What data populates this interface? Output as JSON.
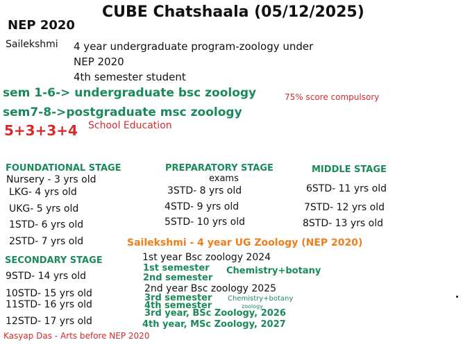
{
  "colors": {
    "text": "#111111",
    "green": "#1b8a5a",
    "red": "#d62b2b",
    "orange": "#ef7d1a",
    "background": "#ffffff"
  },
  "header": {
    "title": "CUBE Chatshaala (05/12/2025)",
    "nep": "NEP 2020"
  },
  "intro": {
    "name": "Sailekshmi",
    "line1": "4 year undergraduate program-zoology under",
    "line2": "NEP 2020",
    "line3": "4th semester student"
  },
  "sems": {
    "ug": "sem 1-6-> undergraduate bsc zoology",
    "score": "75% score compulsory",
    "pg": "sem7-8->postgraduate msc zoology"
  },
  "school": {
    "formula": "5+3+3+4",
    "label": "School Education"
  },
  "stages": {
    "foundational": {
      "heading": "FOUNDATIONAL STAGE",
      "items": [
        "Nursery - 3 yrs old",
        "LKG- 4 yrs old",
        "UKG- 5 yrs old",
        "1STD- 6 yrs old",
        "2STD- 7 yrs old"
      ]
    },
    "preparatory": {
      "heading": "PREPARATORY STAGE",
      "note": "exams",
      "items": [
        "3STD- 8 yrs old",
        "4STD- 9 yrs old",
        "5STD- 10 yrs old"
      ]
    },
    "middle": {
      "heading": "MIDDLE STAGE",
      "items": [
        "6STD- 11 yrs old",
        "7STD- 12 yrs old",
        "8STD- 13 yrs old"
      ]
    },
    "secondary": {
      "heading": "SECONDARY STAGE",
      "items": [
        "9STD- 14 yrs old",
        "10STD- 15 yrs old",
        "11STD- 16 yrs old",
        "12STD- 17 yrs old"
      ]
    }
  },
  "ug": {
    "heading": "Sailekshmi - 4 year UG Zoology (NEP 2020)",
    "year1": "1st year Bsc zoology 2024",
    "sem1": "1st semester",
    "sem2": "2nd semester",
    "chem1": "Chemistry+botany",
    "year2": "2nd year Bsc zoology 2025",
    "sem3": "3rd semester",
    "sem4": "4th semester",
    "chem2": "Chemistry+botany",
    "zoology": "zoology",
    "year3": "3rd year, BSc Zoology, 2026",
    "year4": "4th year, MSc Zoology, 2027"
  },
  "footer": {
    "note": "Kasyap Das - Arts before NEP 2020"
  }
}
